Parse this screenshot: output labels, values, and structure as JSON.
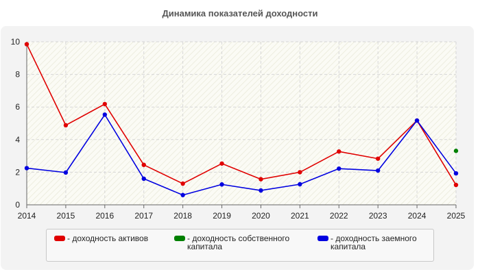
{
  "chart_data": {
    "type": "line",
    "title": "Динамика показателей доходности",
    "xlabel": "",
    "ylabel": "",
    "categories": [
      "2014",
      "2015",
      "2016",
      "2017",
      "2018",
      "2019",
      "2020",
      "2021",
      "2022",
      "2023",
      "2024",
      "2025"
    ],
    "ylim": [
      0,
      10
    ],
    "yticks": [
      0,
      2,
      4,
      6,
      8,
      10
    ],
    "grid": true,
    "legend_position": "bottom",
    "series": [
      {
        "name": "- доходность активов",
        "color": "#e00000",
        "values": [
          9.85,
          4.88,
          6.18,
          2.45,
          1.3,
          2.53,
          1.57,
          2.0,
          3.27,
          2.83,
          5.17,
          1.22
        ]
      },
      {
        "name": "- доходность собственного капитала",
        "color": "#008000",
        "values": [
          null,
          null,
          null,
          null,
          null,
          null,
          null,
          null,
          null,
          null,
          null,
          3.31
        ]
      },
      {
        "name": "- доходность заемного капитала",
        "color": "#0000e0",
        "values": [
          2.25,
          1.98,
          5.53,
          1.6,
          0.6,
          1.25,
          0.88,
          1.26,
          2.22,
          2.1,
          5.17,
          1.93
        ]
      }
    ]
  },
  "legend": {
    "items": [
      {
        "label_line1": "- доходность активов",
        "label_line2": ""
      },
      {
        "label_line1": "- доходность собственного",
        "label_line2": "капитала"
      },
      {
        "label_line1": "- доходность заемного",
        "label_line2": "капитала"
      }
    ]
  }
}
